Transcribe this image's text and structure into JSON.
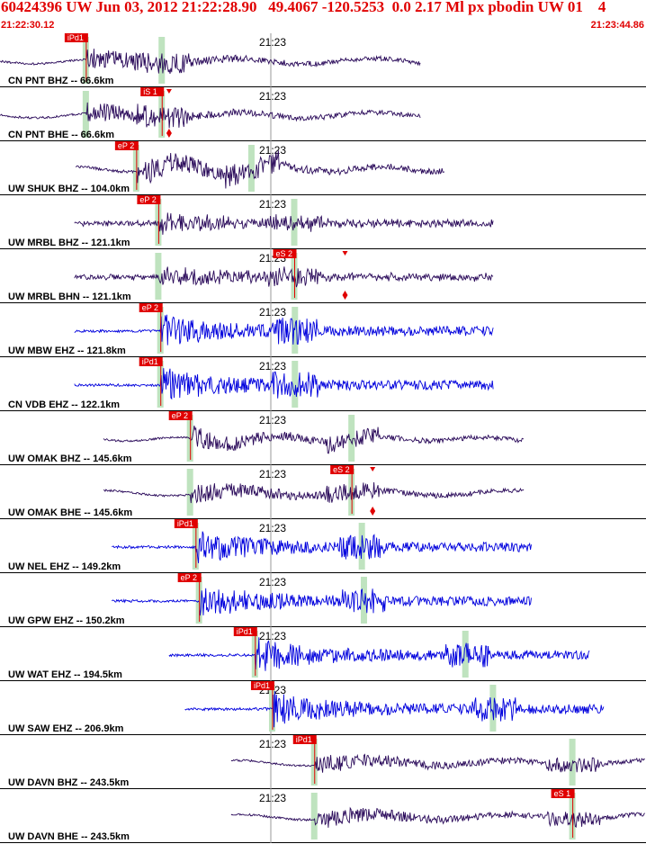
{
  "header": {
    "title": "60424396 UW Jun 03, 2012 21:22:28.90   49.4067 -120.5253  0.0 2.17 Ml px pbodin UW 01    4",
    "start_time": "21:22:30.12",
    "end_time": "21:23:44.86"
  },
  "colors": {
    "header_text": "#e00000",
    "trace_dark": "#2a0a5a",
    "trace_blue": "#0000dd",
    "pick_flag": "#e00000",
    "window_bar": "#bfe3bf",
    "grid": "#9a9a9a"
  },
  "minute_tick_label": "21:23",
  "traces": [
    {
      "label": "CN PNT BHZ -- 66.6km",
      "color": "dark",
      "pick": "iPd1",
      "start_sec": 0.0,
      "end_sec": 61.0,
      "p_sec": 12.5,
      "s_sec": 23.5,
      "amp": "med",
      "style": "emergent"
    },
    {
      "label": "CN PNT BHE -- 66.6km",
      "color": "dark",
      "pick": "iS 1",
      "start_sec": 0.0,
      "end_sec": 61.0,
      "p_sec": 12.5,
      "s_sec": 23.5,
      "amp": "med",
      "style": "emergent",
      "marker_sec": 24.5
    },
    {
      "label": "UW SHUK BHZ -- 104.0km",
      "color": "dark",
      "pick": "eP 2",
      "start_sec": 11.0,
      "end_sec": 64.5,
      "p_sec": 19.8,
      "s_sec": 36.5,
      "amp": "high",
      "style": "longperiod"
    },
    {
      "label": "UW MRBL BHZ -- 121.1km",
      "color": "dark",
      "pick": "eP 2",
      "start_sec": 10.8,
      "end_sec": 71.5,
      "p_sec": 23.0,
      "s_sec": 42.7,
      "amp": "med",
      "style": "noisy"
    },
    {
      "label": "UW MRBL BHN -- 121.1km",
      "color": "dark",
      "pick": "eS 2",
      "start_sec": 10.8,
      "end_sec": 71.5,
      "p_sec": 23.0,
      "s_sec": 42.7,
      "amp": "med",
      "style": "noisy",
      "marker_sec": 50.0
    },
    {
      "label": "UW MBW EHZ -- 121.8km",
      "color": "blue",
      "pick": "eP 2",
      "start_sec": 10.8,
      "end_sec": 71.5,
      "p_sec": 23.3,
      "s_sec": 42.8,
      "amp": "high",
      "style": "impulsive"
    },
    {
      "label": "CN VDB EHZ -- 122.1km",
      "color": "blue",
      "pick": "iPd1",
      "start_sec": 10.8,
      "end_sec": 71.5,
      "p_sec": 23.3,
      "s_sec": 42.8,
      "amp": "high",
      "style": "impulsive"
    },
    {
      "label": "UW OMAK BHZ -- 145.6km",
      "color": "dark",
      "pick": "eP 2",
      "start_sec": 15.0,
      "end_sec": 76.0,
      "p_sec": 27.6,
      "s_sec": 51.0,
      "amp": "med",
      "style": "longperiod"
    },
    {
      "label": "UW OMAK BHE -- 145.6km",
      "color": "dark",
      "pick": "eS 2",
      "start_sec": 15.0,
      "end_sec": 76.0,
      "p_sec": 27.6,
      "s_sec": 51.0,
      "amp": "med",
      "style": "emergent",
      "marker_sec": 54.0
    },
    {
      "label": "UW NEL EHZ -- 149.2km",
      "color": "blue",
      "pick": "iPd1",
      "start_sec": 16.2,
      "end_sec": 77.0,
      "p_sec": 28.4,
      "s_sec": 52.5,
      "amp": "high",
      "style": "impulsive"
    },
    {
      "label": "UW GPW EHZ -- 150.2km",
      "color": "blue",
      "pick": "eP 2",
      "start_sec": 16.2,
      "end_sec": 77.0,
      "p_sec": 28.9,
      "s_sec": 52.8,
      "amp": "high",
      "style": "impulsive"
    },
    {
      "label": "UW WAT EHZ -- 194.5km",
      "color": "blue",
      "pick": "iPd1",
      "start_sec": 24.5,
      "end_sec": 85.5,
      "p_sec": 37.0,
      "s_sec": 67.5,
      "amp": "high",
      "style": "impulsive"
    },
    {
      "label": "UW SAW EHZ -- 206.9km",
      "color": "blue",
      "pick": "iPd1",
      "start_sec": 26.8,
      "end_sec": 87.5,
      "p_sec": 39.5,
      "s_sec": 71.5,
      "amp": "high",
      "style": "impulsive"
    },
    {
      "label": "UW DAVN BHZ -- 243.5km",
      "color": "dark",
      "pick": "iPd1",
      "start_sec": 33.5,
      "end_sec": 94.5,
      "p_sec": 45.6,
      "s_sec": 83.0,
      "amp": "med",
      "style": "emergent"
    },
    {
      "label": "UW DAVN BHE -- 243.5km",
      "color": "dark",
      "pick": "eS 1",
      "start_sec": 33.5,
      "end_sec": 94.5,
      "p_sec": 45.6,
      "s_sec": 83.0,
      "amp": "med",
      "style": "emergent"
    }
  ]
}
